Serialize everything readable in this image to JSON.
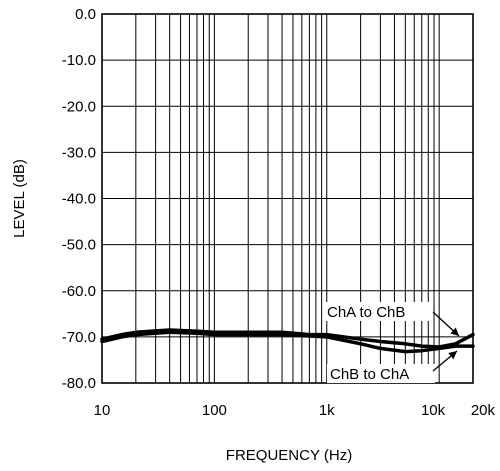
{
  "chart_data": {
    "type": "line",
    "title": "",
    "xlabel": "FREQUENCY (Hz)",
    "ylabel": "LEVEL (dB)",
    "x_scale": "log",
    "xlim": [
      10,
      20000
    ],
    "ylim": [
      -80,
      0
    ],
    "grid": true,
    "x_ticks": [
      {
        "value": 10,
        "label": "10"
      },
      {
        "value": 100,
        "label": "100"
      },
      {
        "value": 1000,
        "label": "1k"
      },
      {
        "value": 10000,
        "label": "10k"
      },
      {
        "value": 20000,
        "label": "20k"
      }
    ],
    "y_ticks": [
      {
        "value": 0,
        "label": "0.0"
      },
      {
        "value": -10,
        "label": "-10.0"
      },
      {
        "value": -20,
        "label": "-20.0"
      },
      {
        "value": -30,
        "label": "-30.0"
      },
      {
        "value": -40,
        "label": "-40.0"
      },
      {
        "value": -50,
        "label": "-50.0"
      },
      {
        "value": -60,
        "label": "-60.0"
      },
      {
        "value": -70,
        "label": "-70.0"
      },
      {
        "value": -80,
        "label": "-80.0"
      }
    ],
    "series": [
      {
        "name": "ChA to ChB",
        "x": [
          10,
          15,
          20,
          40,
          70,
          100,
          200,
          400,
          700,
          1000,
          2000,
          3000,
          5000,
          7000,
          10000,
          14000,
          20000
        ],
        "y": [
          -70.5,
          -69.5,
          -69.0,
          -68.5,
          -68.8,
          -69.0,
          -69.0,
          -69.0,
          -69.5,
          -69.5,
          -70.5,
          -71.0,
          -71.5,
          -72.0,
          -72.2,
          -71.5,
          -69.5
        ]
      },
      {
        "name": "ChB to ChA",
        "x": [
          10,
          15,
          20,
          40,
          70,
          100,
          200,
          400,
          700,
          1000,
          2000,
          3000,
          5000,
          7000,
          10000,
          14000,
          20000
        ],
        "y": [
          -71.0,
          -70.0,
          -69.5,
          -69.0,
          -69.2,
          -69.5,
          -69.5,
          -69.5,
          -69.8,
          -70.0,
          -71.5,
          -72.5,
          -73.2,
          -73.0,
          -72.5,
          -72.0,
          -72.0
        ]
      }
    ],
    "annotations": [
      {
        "text": "ChA to ChB",
        "series": "ChA to ChB"
      },
      {
        "text": "ChB to ChA",
        "series": "ChB to ChA"
      }
    ]
  }
}
